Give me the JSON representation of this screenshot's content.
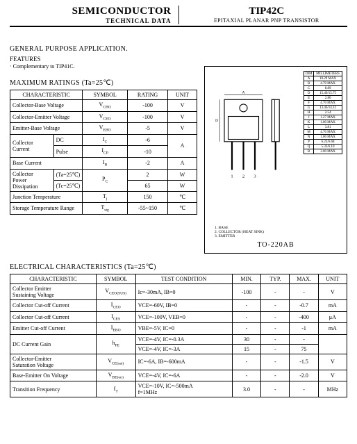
{
  "header": {
    "semi": "SEMICONDUCTOR",
    "tech": "TECHNICAL DATA",
    "part": "TIP42C",
    "sub": "EPITAXIAL PLANAR PNP TRANSISTOR"
  },
  "general": {
    "title": "GENERAL PURPOSE APPLICATION.",
    "features_label": "FEATURES",
    "feature_1": "· Complementary to TIP41C."
  },
  "max_ratings": {
    "title": "MAXIMUM RATINGS (Ta=25℃)",
    "h_char": "CHARACTERISTIC",
    "h_sym": "SYMBOL",
    "h_rat": "RATING",
    "h_unit": "UNIT",
    "r1_c": "Collector-Base Voltage",
    "r1_s": "V",
    "r1_sub": "CBO",
    "r1_r": "-100",
    "r1_u": "V",
    "r2_c": "Collector-Emitter Voltage",
    "r2_s": "V",
    "r2_sub": "CEO",
    "r2_r": "-100",
    "r2_u": "V",
    "r3_c": "Emitter-Base Voltage",
    "r3_s": "V",
    "r3_sub": "EBO",
    "r3_r": "-5",
    "r3_u": "V",
    "r4_c": "Collector Current",
    "r4_dc": "DC",
    "r4_ps": "Pulse",
    "r4_s1": "I",
    "r4_sub1": "C",
    "r4_r1": "-6",
    "r4_s2": "I",
    "r4_sub2": "CP",
    "r4_r2": "-10",
    "r4_u": "A",
    "r5_c": "Base Current",
    "r5_s": "I",
    "r5_sub": "B",
    "r5_r": "-2",
    "r5_u": "A",
    "r6_c": "Collector\nPower Dissipation",
    "r6_t1": "(Ta=25℃)",
    "r6_t2": "(Tc=25℃)",
    "r6_s": "P",
    "r6_sub": "C",
    "r6_r1": "2",
    "r6_r2": "65",
    "r6_u1": "W",
    "r6_u2": "W",
    "r7_c": "Junction Temperature",
    "r7_s": "T",
    "r7_sub": "j",
    "r7_r": "150",
    "r7_u": "℃",
    "r8_c": "Storage Temperature Range",
    "r8_s": "T",
    "r8_sub": "stg",
    "r8_r": "-55~150",
    "r8_u": "℃"
  },
  "package": {
    "label": "TO-220AB",
    "notes_1": "1.  BASE",
    "notes_2": "2.  COLLECTOR (HEAT SINK)",
    "notes_3": "3.  EMITTER",
    "dim_hdr1": "DIM",
    "dim_hdr2": "MILLIMETERS",
    "dims": [
      [
        "A",
        "10.29 MAX"
      ],
      [
        "B",
        "4.70 MAX"
      ],
      [
        "C",
        "8.89"
      ],
      [
        "D",
        "15.49/15.75"
      ],
      [
        "E",
        "2.80"
      ],
      [
        "F",
        "4.70 MAX"
      ],
      [
        "G",
        "13.46/14.12"
      ],
      [
        "H",
        "2.54"
      ],
      [
        "J",
        "1.27 MAX"
      ],
      [
        "K",
        "1.00 MAX"
      ],
      [
        "L",
        "3.81"
      ],
      [
        "M",
        "4.70 MAX"
      ],
      [
        "N",
        "1.00 MAX"
      ],
      [
        "P",
        "6.22/6.68"
      ],
      [
        "Q",
        "5.33/6.10"
      ],
      [
        "R",
        "3.00 MAX"
      ]
    ]
  },
  "elec": {
    "title": "ELECTRICAL CHARACTERISTICS (Ta=25℃)",
    "h_char": "CHARACTERISTIC",
    "h_sym": "SYMBOL",
    "h_tc": "TEST CONDITION",
    "h_min": "MIN.",
    "h_typ": "TYP.",
    "h_max": "MAX.",
    "h_unit": "UNIT",
    "rows": [
      {
        "c": "Collector Emitter\nSustaining Voltage",
        "s": "V",
        "sub": "CEO(SUS)",
        "tc": "Ic=-30mA,  IB=0",
        "min": "-100",
        "typ": "-",
        "max": "-",
        "u": "V"
      },
      {
        "c": "Collector Cut-off Current",
        "s": "I",
        "sub": "CEO",
        "tc": "VCE=-60V,  IB=0",
        "min": "-",
        "typ": "-",
        "max": "-0.7",
        "u": "mA"
      },
      {
        "c": "Collector Cut-off Current",
        "s": "I",
        "sub": "CES",
        "tc": "VCE=-100V,  VEB=0",
        "min": "-",
        "typ": "-",
        "max": "-400",
        "u": "μA"
      },
      {
        "c": "Emitter Cut-off Current",
        "s": "I",
        "sub": "EBO",
        "tc": "VBE=-5V,  IC=0",
        "min": "-",
        "typ": "-",
        "max": "-1",
        "u": "mA"
      }
    ],
    "dc_c": "DC Current Gain",
    "dc_s": "h",
    "dc_sub": "FE",
    "dc_tc1": "VCE=-4V,  IC=-0.3A",
    "dc_min1": "30",
    "dc_typ1": "-",
    "dc_max1": "-",
    "dc_tc2": "VCE=-4V,  IC=-3A",
    "dc_min2": "15",
    "dc_typ2": "-",
    "dc_max2": "75",
    "sat_c": "Collector-Emitter\nSaturation Voltage",
    "sat_s": "V",
    "sat_sub": "CE(sat)",
    "sat_tc": "IC=-6A,  IB=-600mA",
    "sat_min": "-",
    "sat_typ": "-",
    "sat_max": "-1.5",
    "sat_u": "V",
    "vbe_c": "Base-Emitter On Voltage",
    "vbe_s": "V",
    "vbe_sub": "BE(on)",
    "vbe_tc": "VCE=-4V,  IC=-6A",
    "vbe_min": "-",
    "vbe_typ": "-",
    "vbe_max": "-2.0",
    "vbe_u": "V",
    "ft_c": "Transition Frequency",
    "ft_s": "f",
    "ft_sub": "T",
    "ft_tc": "VCE=-10V,  IC=-500mA\nf=1MHz",
    "ft_min": "3.0",
    "ft_typ": "-",
    "ft_max": "-",
    "ft_u": "MHz"
  }
}
